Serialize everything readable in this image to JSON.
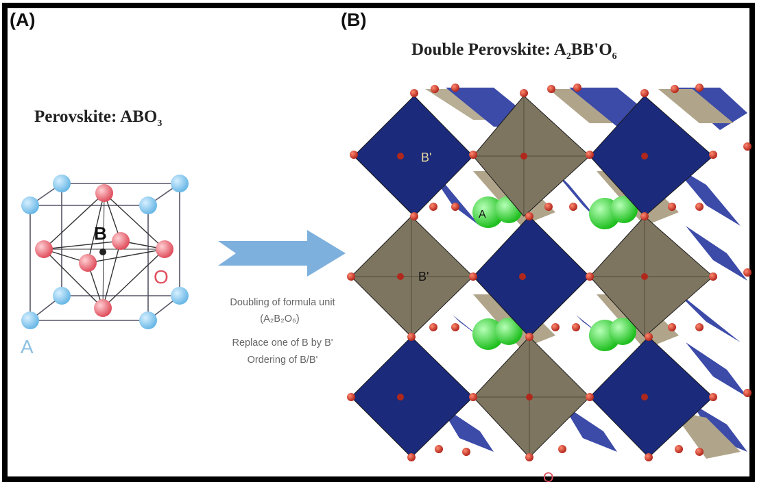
{
  "panel_a": {
    "label": "(A)",
    "title_prefix": "Perovskite: ABO",
    "title_sub": "3",
    "atom_labels": {
      "b": "B",
      "o": "O",
      "a": "A"
    }
  },
  "panel_b": {
    "label": "(B)",
    "title_prefix": "Double Perovskite: A",
    "title_sub1": "2",
    "title_mid": "BB'O",
    "title_sub2": "6",
    "atom_labels": {
      "b_prime_top": "B'",
      "b_prime_mid": "B'",
      "a": "A",
      "o": "O"
    }
  },
  "transform": {
    "line1": "Doubling of formula unit",
    "line2": "(A₂B₂O₆)",
    "line3": "Replace one of B by B'",
    "line4": "Ordering of B/B'"
  },
  "colors": {
    "a_site": "#8ccbef",
    "b_site_dot": "#7a1a20",
    "oxygen": "#e8626e",
    "b_octahedron": "#1b2a7a",
    "b_prime_octahedron": "#7e7560",
    "a_cation_green": "#3fdc3f",
    "arrow": "#7db0dd",
    "frame": "#000000"
  }
}
